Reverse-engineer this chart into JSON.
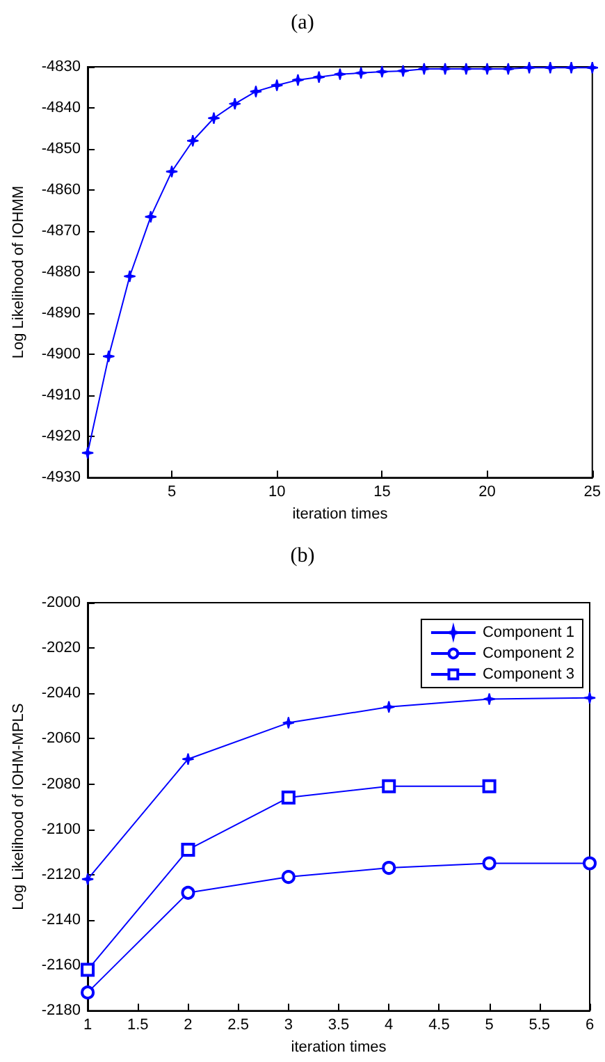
{
  "chart_data": [
    {
      "type": "line",
      "title": "(a)",
      "xlabel": "iteration times",
      "ylabel": "Log Likelihood of IOHMM",
      "x": [
        1,
        2,
        3,
        4,
        5,
        6,
        7,
        8,
        9,
        10,
        11,
        12,
        13,
        14,
        15,
        16,
        17,
        18,
        19,
        20,
        21,
        22,
        23,
        24,
        25
      ],
      "series": [
        {
          "color": "#0000ff",
          "marker": "star",
          "values": [
            -4924,
            -4900.5,
            -4881,
            -4866.5,
            -4855.5,
            -4848,
            -4842.5,
            -4839,
            -4836,
            -4834.5,
            -4833.2,
            -4832.5,
            -4831.8,
            -4831.5,
            -4831.2,
            -4831,
            -4830.5,
            -4830.5,
            -4830.5,
            -4830.5,
            -4830.5,
            -4830.2,
            -4830.2,
            -4830.2,
            -4830.2
          ]
        }
      ],
      "xlim": [
        1,
        25
      ],
      "xticks": [
        5,
        10,
        15,
        20,
        25
      ],
      "ylim": [
        -4930,
        -4830
      ],
      "yticks": [
        -4930,
        -4920,
        -4910,
        -4900,
        -4890,
        -4880,
        -4870,
        -4860,
        -4850,
        -4840,
        -4830
      ],
      "grid": false,
      "legend": false
    },
    {
      "type": "line",
      "title": "(b)",
      "xlabel": "iteration times",
      "ylabel": "Log Likelihood of IOHM-MPLS",
      "x": [
        1,
        2,
        3,
        4,
        5,
        6
      ],
      "series": [
        {
          "name": "Component 1",
          "color": "#0000ff",
          "marker": "star",
          "values": [
            -2122,
            -2069,
            -2053,
            -2046,
            -2042.5,
            -2042
          ]
        },
        {
          "name": "Component 2",
          "color": "#0000ff",
          "marker": "circle",
          "values": [
            -2172,
            -2128,
            -2121,
            -2117,
            -2115,
            -2115
          ]
        },
        {
          "name": "Component 3",
          "color": "#0000ff",
          "marker": "square",
          "values": [
            -2162,
            -2109,
            -2086,
            -2081,
            -2081,
            null
          ]
        }
      ],
      "xlim": [
        1,
        6
      ],
      "xticks": [
        1,
        1.5,
        2,
        2.5,
        3,
        3.5,
        4,
        4.5,
        5,
        5.5,
        6
      ],
      "ylim": [
        -2180,
        -2000
      ],
      "yticks": [
        -2180,
        -2160,
        -2140,
        -2120,
        -2100,
        -2080,
        -2060,
        -2040,
        -2020,
        -2000
      ],
      "grid": false,
      "legend": "top right"
    }
  ]
}
